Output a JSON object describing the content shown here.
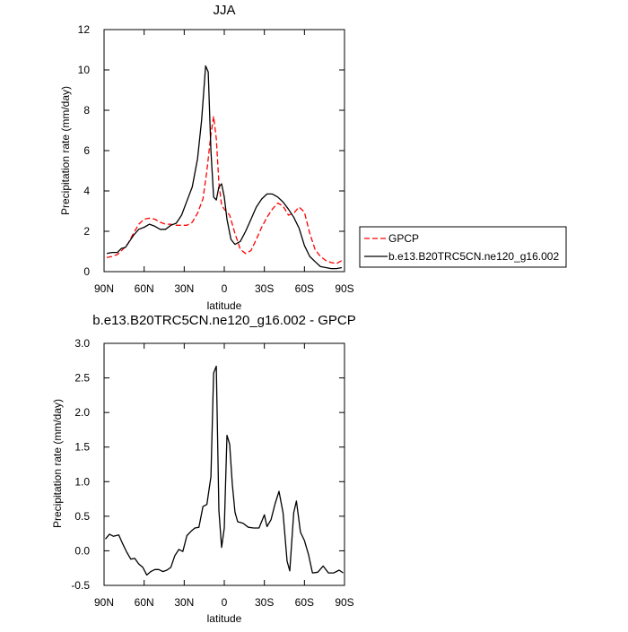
{
  "chart_data": [
    {
      "type": "line",
      "title": "JJA",
      "xlabel": "latitude",
      "ylabel": "Precipitation rate (mm/day)",
      "xlim": [
        90,
        -90
      ],
      "ylim": [
        0,
        12
      ],
      "xticks": [
        90,
        60,
        30,
        0,
        -30,
        -60,
        -90
      ],
      "xtick_labels": [
        "90N",
        "60N",
        "30N",
        "0",
        "30S",
        "60S",
        "90S"
      ],
      "yticks": [
        0,
        2,
        4,
        6,
        8,
        10,
        12
      ],
      "ytick_labels": [
        "0",
        "2",
        "4",
        "6",
        "8",
        "10",
        "12"
      ],
      "legend_position": "outside-right",
      "series": [
        {
          "name": "GPCP",
          "color": "#ff0000",
          "dash": "dashed",
          "points": [
            [
              88,
              0.7
            ],
            [
              84,
              0.75
            ],
            [
              80,
              0.85
            ],
            [
              76,
              1.1
            ],
            [
              72,
              1.4
            ],
            [
              68,
              1.9
            ],
            [
              64,
              2.35
            ],
            [
              60,
              2.6
            ],
            [
              56,
              2.65
            ],
            [
              52,
              2.6
            ],
            [
              48,
              2.45
            ],
            [
              44,
              2.35
            ],
            [
              40,
              2.35
            ],
            [
              36,
              2.3
            ],
            [
              32,
              2.3
            ],
            [
              28,
              2.3
            ],
            [
              24,
              2.45
            ],
            [
              20,
              2.9
            ],
            [
              16,
              3.6
            ],
            [
              13,
              5.0
            ],
            [
              10,
              6.8
            ],
            [
              8,
              7.7
            ],
            [
              6,
              6.6
            ],
            [
              4,
              4.4
            ],
            [
              2,
              3.3
            ],
            [
              0,
              3.1
            ],
            [
              -4,
              2.8
            ],
            [
              -8,
              1.9
            ],
            [
              -12,
              1.1
            ],
            [
              -16,
              0.9
            ],
            [
              -20,
              1.05
            ],
            [
              -24,
              1.6
            ],
            [
              -28,
              2.2
            ],
            [
              -32,
              2.7
            ],
            [
              -36,
              3.1
            ],
            [
              -40,
              3.4
            ],
            [
              -44,
              3.25
            ],
            [
              -48,
              2.8
            ],
            [
              -52,
              2.9
            ],
            [
              -56,
              3.2
            ],
            [
              -60,
              2.95
            ],
            [
              -64,
              1.9
            ],
            [
              -68,
              1.1
            ],
            [
              -72,
              0.75
            ],
            [
              -76,
              0.55
            ],
            [
              -80,
              0.45
            ],
            [
              -84,
              0.4
            ],
            [
              -88,
              0.55
            ]
          ]
        },
        {
          "name": "b.e13.B20TRC5CN.ne120_g16.002",
          "color": "#000000",
          "dash": "solid",
          "points": [
            [
              88,
              0.9
            ],
            [
              84,
              0.95
            ],
            [
              80,
              0.95
            ],
            [
              77,
              1.15
            ],
            [
              74,
              1.2
            ],
            [
              71,
              1.5
            ],
            [
              68,
              1.8
            ],
            [
              64,
              2.1
            ],
            [
              60,
              2.2
            ],
            [
              56,
              2.35
            ],
            [
              52,
              2.25
            ],
            [
              48,
              2.1
            ],
            [
              44,
              2.1
            ],
            [
              40,
              2.3
            ],
            [
              36,
              2.4
            ],
            [
              32,
              2.8
            ],
            [
              28,
              3.5
            ],
            [
              24,
              4.2
            ],
            [
              20,
              5.6
            ],
            [
              17,
              7.5
            ],
            [
              14,
              10.2
            ],
            [
              12,
              9.9
            ],
            [
              10,
              6.0
            ],
            [
              8,
              3.7
            ],
            [
              6,
              3.55
            ],
            [
              4,
              4.2
            ],
            [
              2,
              4.35
            ],
            [
              0,
              3.7
            ],
            [
              -2,
              2.6
            ],
            [
              -5,
              1.6
            ],
            [
              -8,
              1.35
            ],
            [
              -12,
              1.5
            ],
            [
              -16,
              2.0
            ],
            [
              -20,
              2.6
            ],
            [
              -24,
              3.2
            ],
            [
              -28,
              3.6
            ],
            [
              -32,
              3.85
            ],
            [
              -36,
              3.85
            ],
            [
              -40,
              3.7
            ],
            [
              -44,
              3.45
            ],
            [
              -48,
              3.1
            ],
            [
              -52,
              2.7
            ],
            [
              -56,
              2.15
            ],
            [
              -60,
              1.3
            ],
            [
              -64,
              0.75
            ],
            [
              -68,
              0.5
            ],
            [
              -72,
              0.25
            ],
            [
              -76,
              0.2
            ],
            [
              -80,
              0.15
            ],
            [
              -84,
              0.15
            ],
            [
              -88,
              0.2
            ]
          ]
        }
      ]
    },
    {
      "type": "line",
      "title": "b.e13.B20TRC5CN.ne120_g16.002 - GPCP",
      "xlabel": "latitude",
      "ylabel": "Precipitation rate (mm/day)",
      "xlim": [
        90,
        -90
      ],
      "ylim": [
        -0.5,
        3.0
      ],
      "xticks": [
        90,
        60,
        30,
        0,
        -30,
        -60,
        -90
      ],
      "xtick_labels": [
        "90N",
        "60N",
        "30N",
        "0",
        "30S",
        "60S",
        "90S"
      ],
      "yticks": [
        -0.5,
        0,
        0.5,
        1,
        1.5,
        2,
        2.5,
        3
      ],
      "ytick_labels": [
        "-0.5",
        "0.0",
        "0.5",
        "1.0",
        "1.5",
        "2.0",
        "2.5",
        "3.0"
      ],
      "series": [
        {
          "color": "#000000",
          "dash": "solid",
          "points": [
            [
              89,
              0.17
            ],
            [
              86,
              0.24
            ],
            [
              83,
              0.21
            ],
            [
              79,
              0.23
            ],
            [
              76,
              0.1
            ],
            [
              73,
              -0.02
            ],
            [
              70,
              -0.12
            ],
            [
              67,
              -0.11
            ],
            [
              64,
              -0.19
            ],
            [
              61,
              -0.24
            ],
            [
              58,
              -0.35
            ],
            [
              55,
              -0.3
            ],
            [
              52,
              -0.27
            ],
            [
              49,
              -0.27
            ],
            [
              46,
              -0.3
            ],
            [
              43,
              -0.28
            ],
            [
              40,
              -0.24
            ],
            [
              37,
              -0.07
            ],
            [
              34,
              0.02
            ],
            [
              31,
              -0.01
            ],
            [
              28,
              0.22
            ],
            [
              25,
              0.28
            ],
            [
              22,
              0.33
            ],
            [
              19,
              0.34
            ],
            [
              16,
              0.64
            ],
            [
              13,
              0.67
            ],
            [
              10,
              1.07
            ],
            [
              8,
              2.57
            ],
            [
              6,
              2.67
            ],
            [
              4,
              0.58
            ],
            [
              2,
              0.05
            ],
            [
              0,
              0.33
            ],
            [
              -2,
              1.67
            ],
            [
              -4,
              1.54
            ],
            [
              -6,
              0.97
            ],
            [
              -8,
              0.56
            ],
            [
              -10,
              0.42
            ],
            [
              -14,
              0.4
            ],
            [
              -18,
              0.34
            ],
            [
              -22,
              0.33
            ],
            [
              -26,
              0.33
            ],
            [
              -30,
              0.52
            ],
            [
              -32,
              0.35
            ],
            [
              -35,
              0.45
            ],
            [
              -38,
              0.68
            ],
            [
              -41,
              0.86
            ],
            [
              -44,
              0.55
            ],
            [
              -47,
              -0.15
            ],
            [
              -49,
              -0.29
            ],
            [
              -52,
              0.55
            ],
            [
              -54,
              0.72
            ],
            [
              -57,
              0.27
            ],
            [
              -60,
              0.15
            ],
            [
              -63,
              -0.05
            ],
            [
              -66,
              -0.32
            ],
            [
              -70,
              -0.31
            ],
            [
              -74,
              -0.22
            ],
            [
              -78,
              -0.32
            ],
            [
              -82,
              -0.32
            ],
            [
              -86,
              -0.28
            ],
            [
              -89,
              -0.32
            ]
          ]
        }
      ]
    }
  ]
}
